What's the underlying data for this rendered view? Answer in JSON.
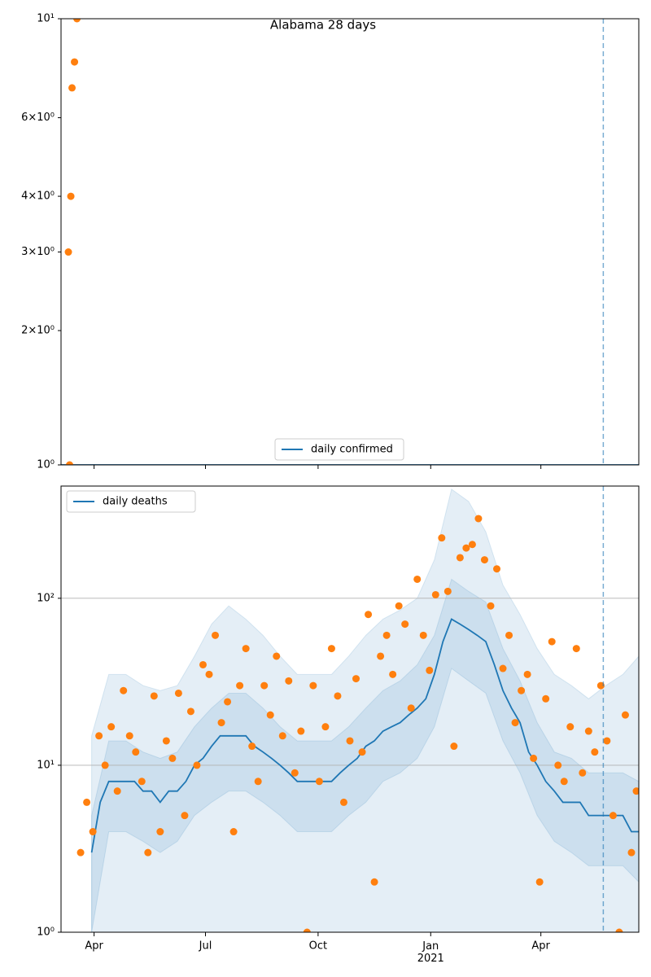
{
  "chart_data": [
    {
      "type": "scatter",
      "title": "Alabama 28 days",
      "xlim": [
        "2020-03-05",
        "2021-06-20"
      ],
      "xticks": [
        "2020-04-01",
        "2020-07-01",
        "2020-10-01",
        "2021-01-01",
        "2021-04-01"
      ],
      "ylim": [
        1,
        10
      ],
      "log_y": true,
      "grid": false,
      "legend": "lower center",
      "yticks": [
        {
          "value": 1,
          "label": "10⁰"
        },
        {
          "value": 2,
          "label": "2×10⁰"
        },
        {
          "value": 3,
          "label": "3×10⁰"
        },
        {
          "value": 4,
          "label": "4×10⁰"
        },
        {
          "value": 6,
          "label": "6×10⁰"
        },
        {
          "value": 10,
          "label": "10¹"
        }
      ],
      "vline": "2021-05-22",
      "series": [
        {
          "name": "daily confirmed",
          "kind": "line",
          "color": "#1f77b4",
          "x": [
            "2020-03-05",
            "2021-06-20"
          ],
          "values": [
            1,
            1
          ]
        },
        {
          "kind": "scatter",
          "color": "#ff7f0e",
          "x": [
            "2020-03-11",
            "2020-03-12",
            "2020-03-13",
            "2020-03-14",
            "2020-03-16",
            "2020-03-18"
          ],
          "values": [
            3,
            1,
            4,
            7,
            8,
            10
          ]
        }
      ]
    },
    {
      "type": "scatter",
      "xlim": [
        "2020-03-05",
        "2021-06-20"
      ],
      "xticks": [
        {
          "value": "2020-04-01",
          "label": "Apr"
        },
        {
          "value": "2020-07-01",
          "label": "Jul"
        },
        {
          "value": "2020-10-01",
          "label": "Oct"
        },
        {
          "value": "2021-01-01",
          "label": "Jan\n2021"
        },
        {
          "value": "2021-04-01",
          "label": "Apr"
        }
      ],
      "ylim": [
        1,
        470
      ],
      "log_y": true,
      "grid": true,
      "legend": "upper left",
      "yticks": [
        {
          "value": 1,
          "label": "10⁰"
        },
        {
          "value": 10,
          "label": "10¹"
        },
        {
          "value": 100,
          "label": "10²"
        }
      ],
      "vline": "2021-05-22",
      "band_x": [
        "2020-03-30",
        "2020-04-13",
        "2020-04-27",
        "2020-05-11",
        "2020-05-25",
        "2020-06-08",
        "2020-06-22",
        "2020-07-06",
        "2020-07-20",
        "2020-08-03",
        "2020-08-17",
        "2020-08-31",
        "2020-09-14",
        "2020-09-28",
        "2020-10-12",
        "2020-10-26",
        "2020-11-09",
        "2020-11-23",
        "2020-12-07",
        "2020-12-21",
        "2021-01-04",
        "2021-01-18",
        "2021-02-01",
        "2021-02-15",
        "2021-03-01",
        "2021-03-15",
        "2021-03-29",
        "2021-04-12",
        "2021-04-26",
        "2021-05-10",
        "2021-05-24",
        "2021-06-07",
        "2021-06-20"
      ],
      "bands": [
        {
          "color": "#1f77b4",
          "lower": [
            1,
            1,
            1,
            1,
            1,
            1,
            1,
            1,
            1,
            1,
            1,
            1,
            1,
            1,
            1,
            1,
            1,
            1,
            1,
            1,
            1,
            1,
            1,
            1,
            1,
            1,
            1,
            1,
            1,
            1,
            1,
            1,
            1
          ],
          "upper": [
            15,
            35,
            35,
            30,
            28,
            30,
            45,
            70,
            90,
            75,
            60,
            45,
            35,
            35,
            35,
            45,
            60,
            75,
            85,
            100,
            170,
            450,
            380,
            250,
            120,
            80,
            50,
            35,
            30,
            25,
            30,
            35,
            45
          ]
        },
        {
          "color": "#1f77b4",
          "lower": [
            1,
            4,
            4,
            3.5,
            3,
            3.5,
            5,
            6,
            7,
            7,
            6,
            5,
            4,
            4,
            4,
            5,
            6,
            8,
            9,
            11,
            17,
            38,
            32,
            27,
            14,
            9,
            5,
            3.5,
            3,
            2.5,
            2.5,
            2.5,
            2
          ],
          "upper": [
            5,
            14,
            14,
            12,
            11,
            12,
            17,
            22,
            27,
            27,
            22,
            17,
            14,
            14,
            14,
            17,
            22,
            28,
            32,
            40,
            60,
            130,
            110,
            95,
            50,
            32,
            18,
            12,
            11,
            9,
            9,
            9,
            8
          ]
        }
      ],
      "series": [
        {
          "name": "daily deaths",
          "kind": "line",
          "color": "#1f77b4",
          "x": [
            "2020-03-30",
            "2020-04-06",
            "2020-04-13",
            "2020-04-20",
            "2020-04-27",
            "2020-05-04",
            "2020-05-11",
            "2020-05-18",
            "2020-05-25",
            "2020-06-01",
            "2020-06-08",
            "2020-06-15",
            "2020-06-22",
            "2020-06-29",
            "2020-07-06",
            "2020-07-13",
            "2020-07-20",
            "2020-07-27",
            "2020-08-03",
            "2020-08-10",
            "2020-08-17",
            "2020-08-24",
            "2020-08-31",
            "2020-09-07",
            "2020-09-14",
            "2020-09-21",
            "2020-09-28",
            "2020-10-05",
            "2020-10-12",
            "2020-10-19",
            "2020-10-26",
            "2020-11-02",
            "2020-11-09",
            "2020-11-16",
            "2020-11-23",
            "2020-11-30",
            "2020-12-07",
            "2020-12-14",
            "2020-12-21",
            "2020-12-28",
            "2021-01-04",
            "2021-01-11",
            "2021-01-18",
            "2021-01-25",
            "2021-02-01",
            "2021-02-08",
            "2021-02-15",
            "2021-02-22",
            "2021-03-01",
            "2021-03-08",
            "2021-03-15",
            "2021-03-22",
            "2021-03-29",
            "2021-04-05",
            "2021-04-12",
            "2021-04-19",
            "2021-04-26",
            "2021-05-03",
            "2021-05-10",
            "2021-05-17",
            "2021-05-24",
            "2021-05-31",
            "2021-06-07",
            "2021-06-14",
            "2021-06-20"
          ],
          "values": [
            3,
            6,
            8,
            8,
            8,
            8,
            7,
            7,
            6,
            7,
            7,
            8,
            10,
            11,
            13,
            15,
            15,
            15,
            15,
            13,
            12,
            11,
            10,
            9,
            8,
            8,
            8,
            8,
            8,
            9,
            10,
            11,
            13,
            14,
            16,
            17,
            18,
            20,
            22,
            25,
            35,
            55,
            75,
            70,
            65,
            60,
            55,
            40,
            28,
            22,
            18,
            12,
            10,
            8,
            7,
            6,
            6,
            6,
            5,
            5,
            5,
            5,
            5,
            4,
            4
          ]
        },
        {
          "kind": "scatter",
          "color": "#ff7f0e",
          "x": [
            "2020-03-21",
            "2020-03-26",
            "2020-03-31",
            "2020-04-05",
            "2020-04-10",
            "2020-04-15",
            "2020-04-20",
            "2020-04-25",
            "2020-04-30",
            "2020-05-05",
            "2020-05-10",
            "2020-05-15",
            "2020-05-20",
            "2020-05-25",
            "2020-05-30",
            "2020-06-04",
            "2020-06-09",
            "2020-06-14",
            "2020-06-19",
            "2020-06-24",
            "2020-06-29",
            "2020-07-04",
            "2020-07-09",
            "2020-07-14",
            "2020-07-19",
            "2020-07-24",
            "2020-07-29",
            "2020-08-03",
            "2020-08-08",
            "2020-08-13",
            "2020-08-18",
            "2020-08-23",
            "2020-08-28",
            "2020-09-02",
            "2020-09-07",
            "2020-09-12",
            "2020-09-17",
            "2020-09-22",
            "2020-09-27",
            "2020-10-02",
            "2020-10-07",
            "2020-10-12",
            "2020-10-17",
            "2020-10-22",
            "2020-10-27",
            "2020-11-01",
            "2020-11-06",
            "2020-11-11",
            "2020-11-16",
            "2020-11-21",
            "2020-11-26",
            "2020-12-01",
            "2020-12-06",
            "2020-12-11",
            "2020-12-16",
            "2020-12-21",
            "2020-12-26",
            "2020-12-31",
            "2021-01-05",
            "2021-01-10",
            "2021-01-15",
            "2021-01-20",
            "2021-01-25",
            "2021-01-30",
            "2021-02-04",
            "2021-02-09",
            "2021-02-14",
            "2021-02-19",
            "2021-02-24",
            "2021-03-01",
            "2021-03-06",
            "2021-03-11",
            "2021-03-16",
            "2021-03-21",
            "2021-03-26",
            "2021-03-31",
            "2021-04-05",
            "2021-04-10",
            "2021-04-15",
            "2021-04-20",
            "2021-04-25",
            "2021-04-30",
            "2021-05-05",
            "2021-05-10",
            "2021-05-15",
            "2021-05-20",
            "2021-05-25",
            "2021-05-30",
            "2021-06-04",
            "2021-06-09",
            "2021-06-14",
            "2021-06-18"
          ],
          "values": [
            3,
            6,
            4,
            15,
            10,
            17,
            7,
            28,
            15,
            12,
            8,
            3,
            26,
            4,
            14,
            11,
            27,
            5,
            21,
            10,
            40,
            35,
            60,
            18,
            24,
            4,
            30,
            50,
            13,
            8,
            30,
            20,
            45,
            15,
            32,
            9,
            16,
            1,
            30,
            8,
            17,
            50,
            26,
            6,
            14,
            33,
            12,
            80,
            2,
            45,
            60,
            35,
            90,
            70,
            22,
            130,
            60,
            37,
            105,
            230,
            110,
            13,
            175,
            200,
            210,
            300,
            170,
            90,
            150,
            38,
            60,
            18,
            28,
            35,
            11,
            2,
            25,
            55,
            10,
            8,
            17,
            50,
            9,
            16,
            12,
            30,
            14,
            5,
            1,
            20,
            3,
            7
          ]
        }
      ]
    }
  ]
}
